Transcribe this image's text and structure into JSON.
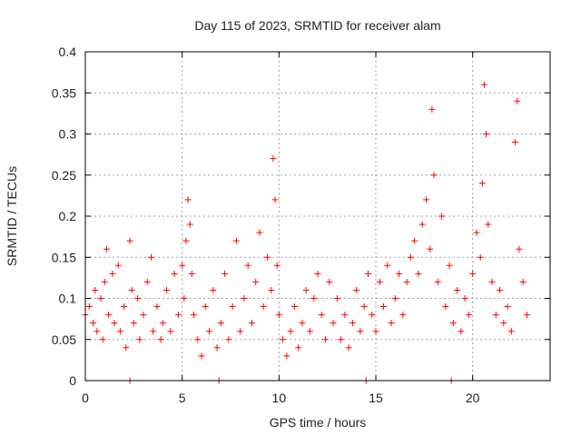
{
  "chart_data": {
    "type": "scatter",
    "title": "Day 115 of 2023, SRMTID for receiver alam",
    "xlabel": "GPS time / hours",
    "ylabel": "SRMTID / TECUs",
    "xlim": [
      0,
      24
    ],
    "ylim": [
      0,
      0.4
    ],
    "xticks": [
      0,
      5,
      10,
      15,
      20
    ],
    "yticks": [
      0,
      0.05,
      0.1,
      0.15,
      0.2,
      0.25,
      0.3,
      0.35,
      0.4
    ],
    "xtick_labels": [
      "0",
      "5",
      "10",
      "15",
      "20"
    ],
    "ytick_labels": [
      "0",
      "0.05",
      "0.1",
      "0.15",
      "0.2",
      "0.25",
      "0.3",
      "0.35",
      "0.4"
    ],
    "grid": true,
    "marker": "plus",
    "color": "#ff0000",
    "series": [
      {
        "name": "SRMTID",
        "points": [
          [
            0.0,
            0.08
          ],
          [
            0.2,
            0.09
          ],
          [
            0.4,
            0.07
          ],
          [
            0.5,
            0.11
          ],
          [
            0.6,
            0.06
          ],
          [
            0.8,
            0.1
          ],
          [
            0.9,
            0.05
          ],
          [
            1.0,
            0.12
          ],
          [
            1.1,
            0.16
          ],
          [
            1.2,
            0.08
          ],
          [
            1.4,
            0.13
          ],
          [
            1.5,
            0.07
          ],
          [
            1.7,
            0.14
          ],
          [
            1.8,
            0.06
          ],
          [
            2.0,
            0.09
          ],
          [
            2.1,
            0.04
          ],
          [
            2.3,
            0.17
          ],
          [
            2.4,
            0.11
          ],
          [
            2.5,
            0.07
          ],
          [
            2.7,
            0.1
          ],
          [
            2.8,
            0.05
          ],
          [
            3.0,
            0.08
          ],
          [
            3.2,
            0.12
          ],
          [
            3.4,
            0.15
          ],
          [
            3.5,
            0.06
          ],
          [
            3.7,
            0.09
          ],
          [
            3.9,
            0.05
          ],
          [
            4.0,
            0.07
          ],
          [
            4.2,
            0.11
          ],
          [
            4.4,
            0.06
          ],
          [
            4.6,
            0.13
          ],
          [
            4.8,
            0.08
          ],
          [
            5.0,
            0.14
          ],
          [
            5.1,
            0.1
          ],
          [
            5.2,
            0.17
          ],
          [
            5.3,
            0.22
          ],
          [
            5.4,
            0.19
          ],
          [
            5.5,
            0.13
          ],
          [
            5.6,
            0.08
          ],
          [
            5.8,
            0.05
          ],
          [
            6.0,
            0.03
          ],
          [
            6.2,
            0.09
          ],
          [
            6.4,
            0.06
          ],
          [
            6.6,
            0.11
          ],
          [
            6.8,
            0.04
          ],
          [
            7.0,
            0.07
          ],
          [
            7.2,
            0.13
          ],
          [
            7.4,
            0.05
          ],
          [
            7.6,
            0.09
          ],
          [
            7.8,
            0.17
          ],
          [
            8.0,
            0.06
          ],
          [
            8.2,
            0.1
          ],
          [
            8.4,
            0.14
          ],
          [
            8.6,
            0.07
          ],
          [
            8.8,
            0.12
          ],
          [
            9.0,
            0.18
          ],
          [
            9.2,
            0.09
          ],
          [
            9.4,
            0.15
          ],
          [
            9.6,
            0.11
          ],
          [
            9.7,
            0.27
          ],
          [
            9.8,
            0.22
          ],
          [
            9.9,
            0.14
          ],
          [
            10.0,
            0.08
          ],
          [
            10.2,
            0.05
          ],
          [
            10.4,
            0.03
          ],
          [
            10.6,
            0.06
          ],
          [
            10.8,
            0.09
          ],
          [
            11.0,
            0.04
          ],
          [
            11.2,
            0.07
          ],
          [
            11.4,
            0.11
          ],
          [
            11.6,
            0.06
          ],
          [
            11.8,
            0.1
          ],
          [
            12.0,
            0.13
          ],
          [
            12.2,
            0.08
          ],
          [
            12.4,
            0.05
          ],
          [
            12.6,
            0.12
          ],
          [
            12.8,
            0.07
          ],
          [
            13.0,
            0.1
          ],
          [
            13.2,
            0.05
          ],
          [
            13.4,
            0.08
          ],
          [
            13.6,
            0.04
          ],
          [
            13.8,
            0.07
          ],
          [
            14.0,
            0.11
          ],
          [
            14.2,
            0.06
          ],
          [
            14.4,
            0.09
          ],
          [
            14.6,
            0.13
          ],
          [
            14.8,
            0.08
          ],
          [
            15.0,
            0.06
          ],
          [
            15.2,
            0.12
          ],
          [
            15.4,
            0.09
          ],
          [
            15.6,
            0.14
          ],
          [
            15.8,
            0.07
          ],
          [
            16.0,
            0.1
          ],
          [
            16.2,
            0.13
          ],
          [
            16.4,
            0.08
          ],
          [
            16.6,
            0.12
          ],
          [
            16.8,
            0.15
          ],
          [
            17.0,
            0.17
          ],
          [
            17.2,
            0.13
          ],
          [
            17.4,
            0.19
          ],
          [
            17.6,
            0.22
          ],
          [
            17.8,
            0.16
          ],
          [
            17.9,
            0.33
          ],
          [
            18.0,
            0.25
          ],
          [
            18.2,
            0.12
          ],
          [
            18.4,
            0.2
          ],
          [
            18.6,
            0.09
          ],
          [
            18.8,
            0.14
          ],
          [
            19.0,
            0.07
          ],
          [
            19.2,
            0.11
          ],
          [
            19.4,
            0.06
          ],
          [
            19.6,
            0.1
          ],
          [
            19.8,
            0.08
          ],
          [
            20.0,
            0.13
          ],
          [
            20.2,
            0.18
          ],
          [
            20.4,
            0.15
          ],
          [
            20.5,
            0.24
          ],
          [
            20.6,
            0.36
          ],
          [
            20.7,
            0.3
          ],
          [
            20.8,
            0.19
          ],
          [
            21.0,
            0.12
          ],
          [
            21.2,
            0.08
          ],
          [
            21.4,
            0.11
          ],
          [
            21.6,
            0.07
          ],
          [
            21.8,
            0.09
          ],
          [
            22.0,
            0.06
          ],
          [
            22.2,
            0.29
          ],
          [
            22.3,
            0.34
          ],
          [
            22.4,
            0.16
          ],
          [
            22.6,
            0.12
          ],
          [
            22.8,
            0.08
          ],
          [
            2.3,
            0.0
          ],
          [
            6.9,
            0.0
          ],
          [
            14.5,
            0.0
          ],
          [
            18.9,
            0.0
          ]
        ]
      }
    ]
  }
}
